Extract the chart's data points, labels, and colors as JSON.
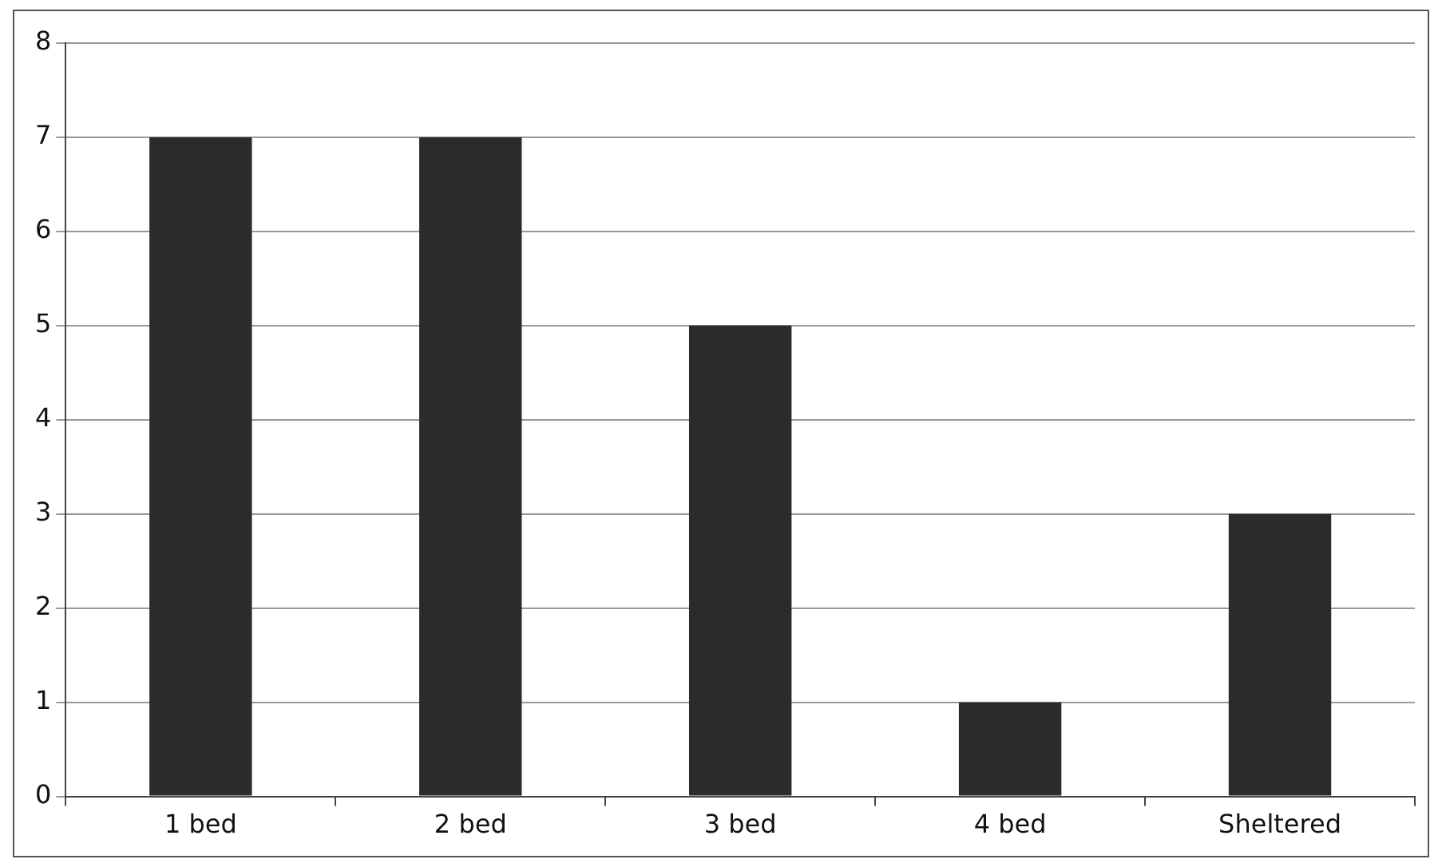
{
  "chart_data": {
    "type": "bar",
    "categories": [
      "1 bed",
      "2 bed",
      "3 bed",
      "4 bed",
      "Sheltered"
    ],
    "values": [
      7,
      7,
      5,
      1,
      3
    ],
    "color": "#2b2b2b",
    "ylim": [
      0,
      8
    ],
    "yticks": [
      0,
      1,
      2,
      3,
      4,
      5,
      6,
      7,
      8
    ],
    "grid": "y",
    "legend": false
  }
}
